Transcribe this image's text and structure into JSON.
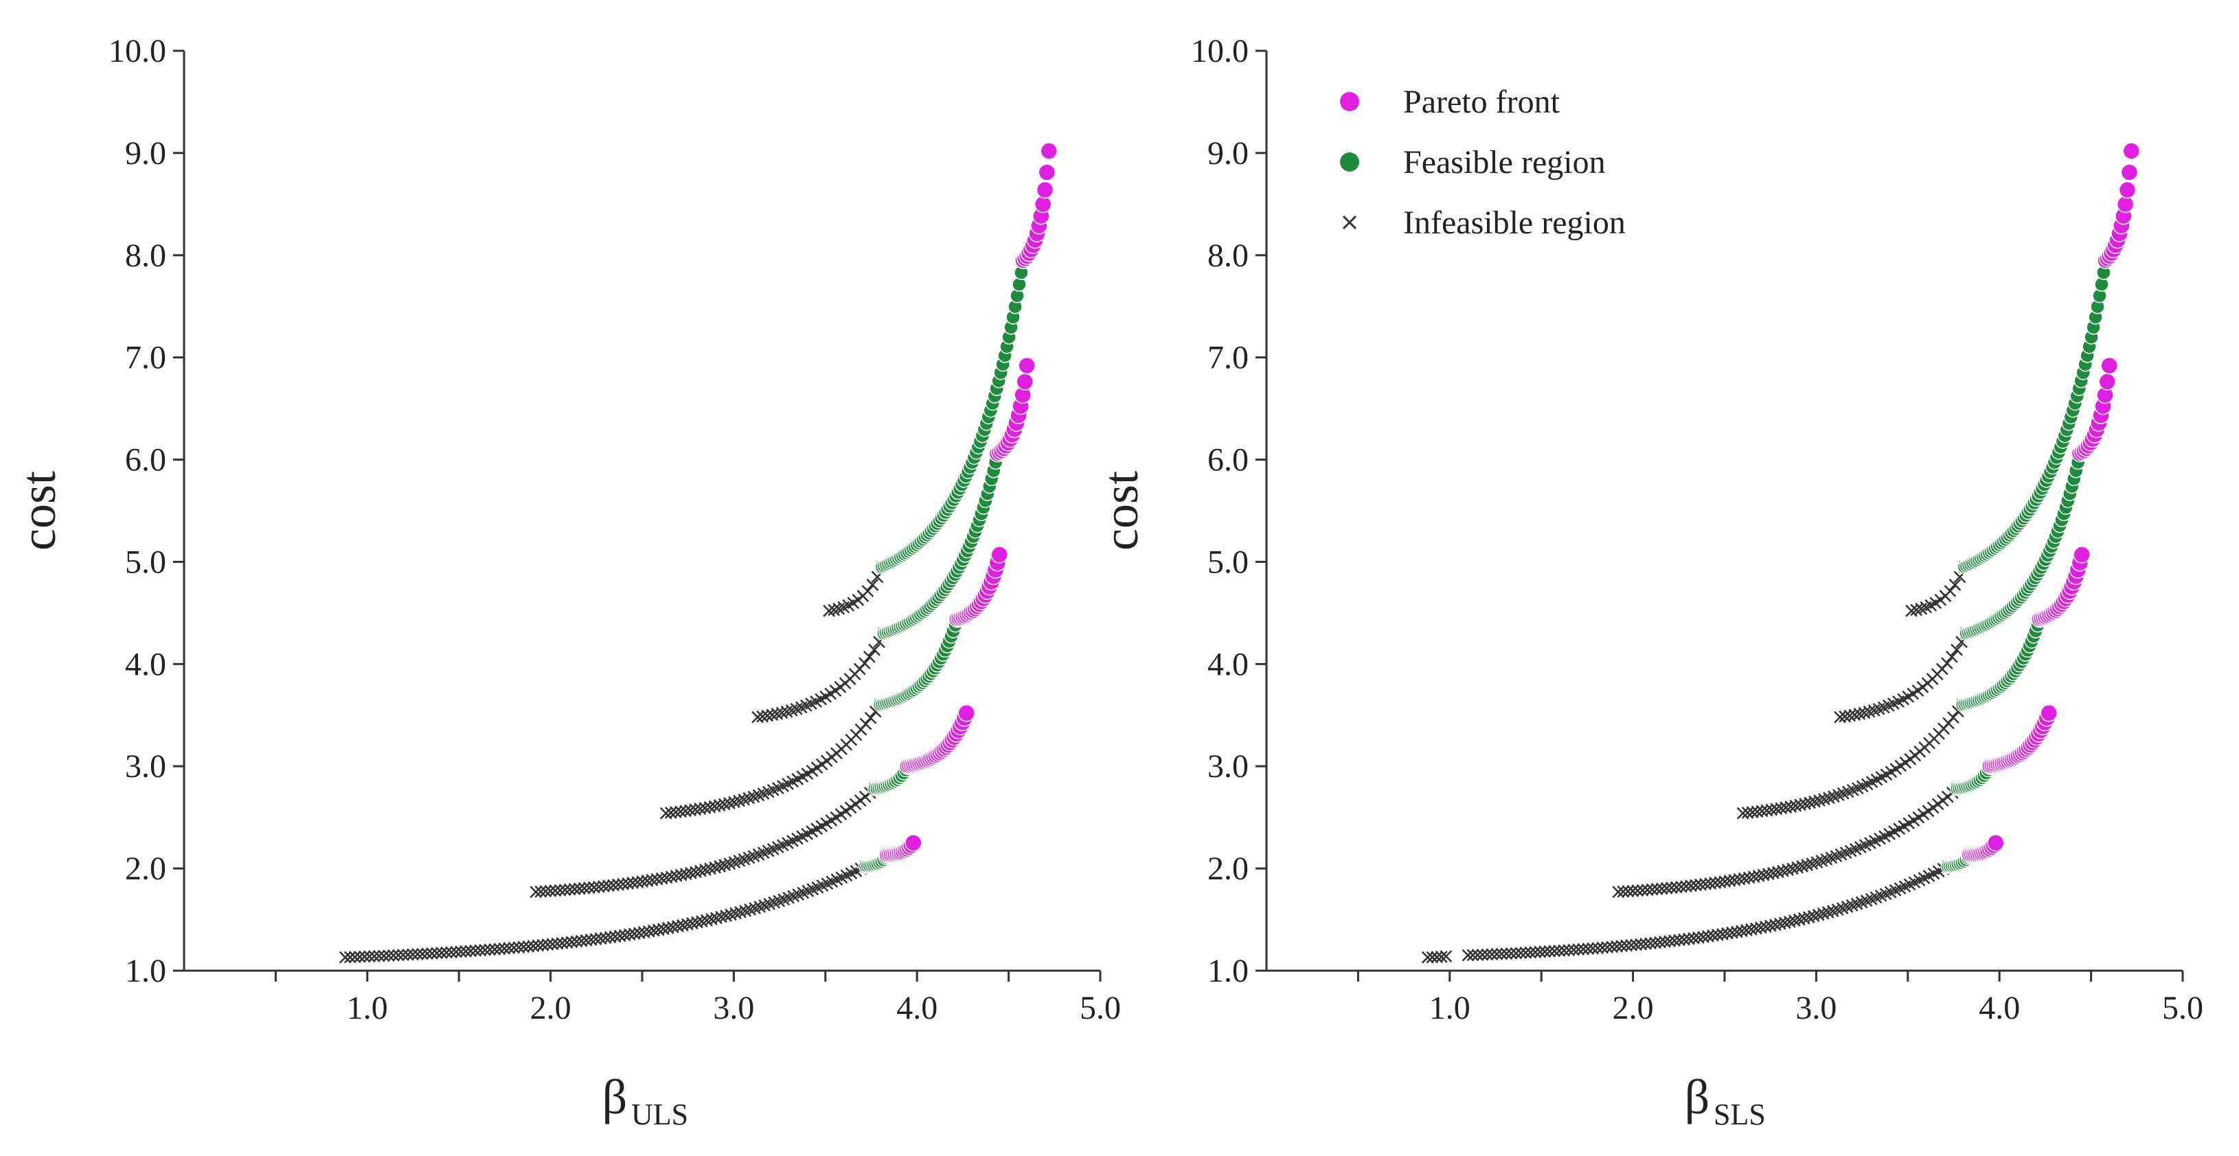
{
  "chart_data": [
    {
      "type": "scatter",
      "title": "",
      "xlabel": "β",
      "xlabel_subscript": "ULS",
      "ylabel": "cost",
      "xlim": [
        0,
        5
      ],
      "ylim": [
        1,
        10
      ],
      "xticks": [
        1.0,
        2.0,
        3.0,
        4.0,
        5.0
      ],
      "xtick_labels": [
        "1.0",
        "2.0",
        "3.0",
        "4.0",
        "5.0"
      ],
      "yticks": [
        1,
        2,
        3,
        4,
        5,
        6,
        7,
        8,
        9,
        10
      ],
      "ytick_labels": [
        "1.0",
        "2.0",
        "3.0",
        "4.0",
        "5.0",
        "6.0",
        "7.0",
        "8.0",
        "9.0",
        "10.0"
      ],
      "grid": false,
      "series": [
        {
          "name": "Pareto front",
          "marker": "circle",
          "color": "#e020e0",
          "curves": [
            {
              "x_start": 3.84,
              "x_end": 3.98,
              "y_start": 2.13,
              "y_end": 2.25
            },
            {
              "x_start": 3.95,
              "x_end": 4.27,
              "y_start": 3.0,
              "y_end": 3.52
            },
            {
              "x_start": 4.22,
              "x_end": 4.45,
              "y_start": 4.44,
              "y_end": 5.07
            },
            {
              "x_start": 4.44,
              "x_end": 4.6,
              "y_start": 6.06,
              "y_end": 6.92
            },
            {
              "x_start": 4.58,
              "x_end": 4.72,
              "y_start": 7.95,
              "y_end": 9.02
            }
          ]
        },
        {
          "name": "Feasible region",
          "marker": "circle",
          "color": "#1e8c3c",
          "curves": [
            {
              "x_start": 3.72,
              "x_end": 3.84,
              "y_start": 2.02,
              "y_end": 2.13
            },
            {
              "x_start": 3.77,
              "x_end": 3.95,
              "y_start": 2.78,
              "y_end": 3.0
            },
            {
              "x_start": 3.8,
              "x_end": 4.22,
              "y_start": 3.6,
              "y_end": 4.44
            },
            {
              "x_start": 3.82,
              "x_end": 4.44,
              "y_start": 4.3,
              "y_end": 6.06
            },
            {
              "x_start": 3.81,
              "x_end": 4.58,
              "y_start": 4.95,
              "y_end": 7.95
            }
          ]
        },
        {
          "name": "Infeasible region",
          "marker": "x",
          "color": "#333333",
          "curves": [
            {
              "x_start": 0.88,
              "x_end": 3.72,
              "y_start": 1.13,
              "y_end": 2.02
            },
            {
              "x_start": 1.92,
              "x_end": 3.77,
              "y_start": 1.77,
              "y_end": 2.78
            },
            {
              "x_start": 2.63,
              "x_end": 3.8,
              "y_start": 2.54,
              "y_end": 3.6
            },
            {
              "x_start": 3.13,
              "x_end": 3.82,
              "y_start": 3.48,
              "y_end": 4.3
            },
            {
              "x_start": 3.52,
              "x_end": 3.81,
              "y_start": 4.52,
              "y_end": 4.95
            }
          ]
        }
      ]
    },
    {
      "type": "scatter",
      "title": "",
      "xlabel": "β",
      "xlabel_subscript": "SLS",
      "ylabel": "cost",
      "xlim": [
        0,
        5
      ],
      "ylim": [
        1,
        10
      ],
      "xticks": [
        1.0,
        2.0,
        3.0,
        4.0,
        5.0
      ],
      "xtick_labels": [
        "1.0",
        "2.0",
        "3.0",
        "4.0",
        "5.0"
      ],
      "yticks": [
        1,
        2,
        3,
        4,
        5,
        6,
        7,
        8,
        9,
        10
      ],
      "ytick_labels": [
        "1.0",
        "2.0",
        "3.0",
        "4.0",
        "5.0",
        "6.0",
        "7.0",
        "8.0",
        "9.0",
        "10.0"
      ],
      "grid": false,
      "legend": {
        "position": "top-left",
        "entries": [
          "Pareto front",
          "Feasible region",
          "Infeasible region"
        ]
      },
      "series": [
        {
          "name": "Pareto front",
          "marker": "circle",
          "color": "#e020e0",
          "curves": [
            {
              "x_start": 3.84,
              "x_end": 3.98,
              "y_start": 2.13,
              "y_end": 2.25
            },
            {
              "x_start": 3.95,
              "x_end": 4.27,
              "y_start": 3.0,
              "y_end": 3.52
            },
            {
              "x_start": 4.22,
              "x_end": 4.45,
              "y_start": 4.44,
              "y_end": 5.07
            },
            {
              "x_start": 4.44,
              "x_end": 4.6,
              "y_start": 6.06,
              "y_end": 6.92
            },
            {
              "x_start": 4.58,
              "x_end": 4.72,
              "y_start": 7.95,
              "y_end": 9.02
            }
          ]
        },
        {
          "name": "Feasible region",
          "marker": "circle",
          "color": "#1e8c3c",
          "curves": [
            {
              "x_start": 3.72,
              "x_end": 3.84,
              "y_start": 2.02,
              "y_end": 2.13
            },
            {
              "x_start": 3.77,
              "x_end": 3.95,
              "y_start": 2.78,
              "y_end": 3.0
            },
            {
              "x_start": 3.8,
              "x_end": 4.22,
              "y_start": 3.6,
              "y_end": 4.44
            },
            {
              "x_start": 3.82,
              "x_end": 4.44,
              "y_start": 4.3,
              "y_end": 6.06
            },
            {
              "x_start": 3.81,
              "x_end": 4.58,
              "y_start": 4.95,
              "y_end": 7.95
            }
          ]
        },
        {
          "name": "Infeasible region",
          "marker": "x",
          "color": "#333333",
          "curves": [
            {
              "x_start": 0.88,
              "x_end": 0.98,
              "y_start": 1.13,
              "y_end": 1.14
            },
            {
              "x_start": 1.1,
              "x_end": 3.72,
              "y_start": 1.15,
              "y_end": 2.02
            },
            {
              "x_start": 1.92,
              "x_end": 3.77,
              "y_start": 1.77,
              "y_end": 2.78
            },
            {
              "x_start": 2.6,
              "x_end": 3.8,
              "y_start": 2.54,
              "y_end": 3.6
            },
            {
              "x_start": 3.13,
              "x_end": 3.82,
              "y_start": 3.48,
              "y_end": 4.3
            },
            {
              "x_start": 3.52,
              "x_end": 3.81,
              "y_start": 4.52,
              "y_end": 4.95
            }
          ]
        }
      ]
    }
  ]
}
